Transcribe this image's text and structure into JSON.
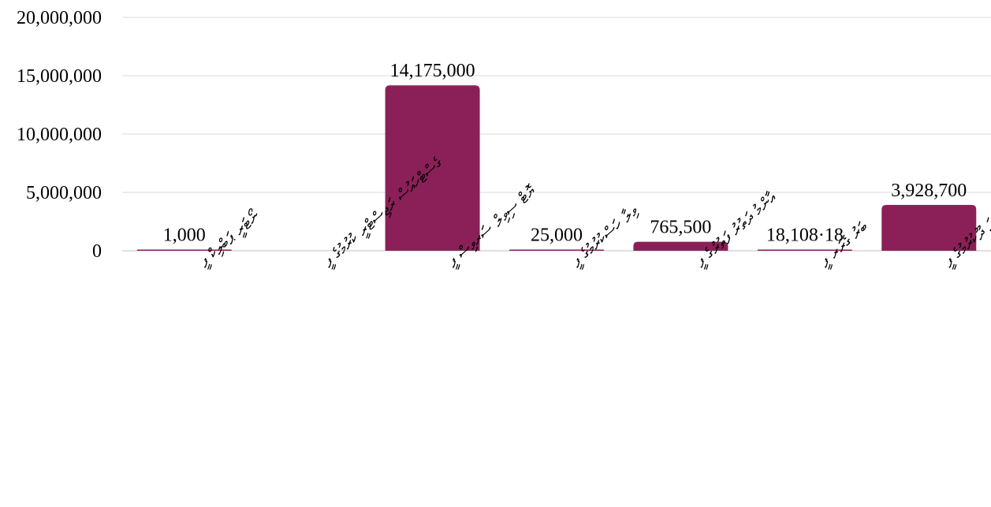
{
  "colors": {
    "bar": "#8b2058",
    "grid": "#d9d9d9",
    "text": "#000000",
    "background": "#ffffff"
  },
  "chart_data": {
    "type": "bar",
    "title": "",
    "xlabel": "",
    "ylabel": "",
    "ylim": [
      0,
      20000000
    ],
    "yticks": [
      0,
      5000000,
      10000000,
      15000000,
      20000000
    ],
    "ytick_labels": [
      "0",
      "5,000,000",
      "10,000,000",
      "15,000,000",
      "20,000,000"
    ],
    "grid": true,
    "legend": "none",
    "categories": [
      "ނޯޓަރީ ޕަބްލިކް ފީ",
      "ގެސްޓްހައުސް ރަޖިސްޓްރީ ކުރުމުގެ ފީ",
      "ޔޮޓް ސިވިލް ސަރވިސް ފީ",
      "ވިލާ ހަސްކުރުމުގެ ފީ",
      "އާންމު ދަތުރު ފަތުރުގެ ފީ",
      "ބަރު ގެރަރ ފީ",
      "ތިމާވެށީގެ ހުއްދަ ދޫކުރުމުގެ ފީ"
    ],
    "values": [
      1000,
      0,
      14175000,
      25000,
      765500,
      18108.18,
      3928700
    ],
    "data_labels": [
      "1,000",
      "",
      "14,175,000",
      "25,000",
      "765,500",
      "18,108·18",
      "3,928,700"
    ]
  }
}
